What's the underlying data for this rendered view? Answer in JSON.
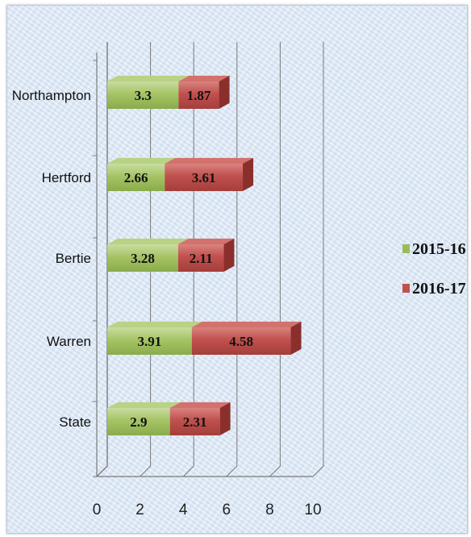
{
  "chart_data": {
    "type": "bar",
    "orientation": "horizontal",
    "stacked": true,
    "style": "3d",
    "categories": [
      "Northampton",
      "Hertford",
      "Bertie",
      "Warren",
      "State"
    ],
    "series": [
      {
        "name": "2015-16",
        "values": [
          3.3,
          2.66,
          3.28,
          3.91,
          2.9
        ],
        "color": "#9bbb59"
      },
      {
        "name": "2016-17",
        "values": [
          1.87,
          3.61,
          2.11,
          4.58,
          2.31
        ],
        "color": "#c0504d"
      }
    ],
    "xlim": [
      0,
      10
    ],
    "xticks": [
      "0",
      "2",
      "4",
      "6",
      "8",
      "10"
    ],
    "grid": true,
    "legend": "right"
  }
}
